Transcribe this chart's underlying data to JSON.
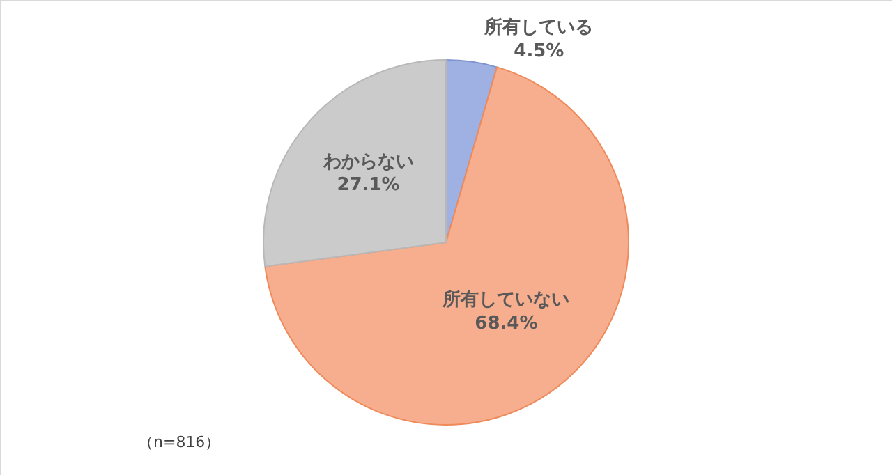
{
  "chart_data": {
    "type": "pie",
    "categories": [
      "所有している",
      "所有していない",
      "わからない"
    ],
    "values": [
      4.5,
      68.4,
      27.1
    ],
    "value_labels": [
      "4.5%",
      "68.4%",
      "27.1%"
    ],
    "colors": [
      "#9fb1e2",
      "#f6ae8e",
      "#cbcbcb"
    ],
    "legend": false,
    "annotations": [
      "（n=816）"
    ]
  }
}
